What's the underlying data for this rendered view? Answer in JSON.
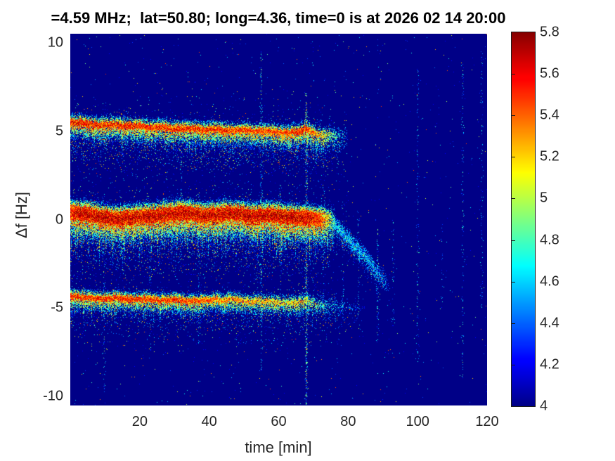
{
  "chart_data": {
    "type": "heatmap",
    "subtype": "doppler-spectrogram",
    "title": "=4.59 MHz;  lat=50.80; long=4.36, time=0 is at 2026 02 14 20:00",
    "xlabel": "time [min]",
    "ylabel": "Δf [Hz]",
    "xlim": [
      0,
      120
    ],
    "ylim": [
      -10.5,
      10.5
    ],
    "xticks": [
      20,
      40,
      60,
      80,
      100,
      120
    ],
    "yticks": [
      10,
      5,
      0,
      -5,
      -10
    ],
    "grid": false,
    "colorbar": {
      "colormap": "jet",
      "range": [
        4,
        5.8
      ],
      "tick_labels": [
        "4",
        "4.2",
        "4.4",
        "4.6",
        "4.8",
        "5",
        "5.2",
        "5.4",
        "5.6",
        "5.8"
      ],
      "tick_values": [
        4,
        4.2,
        4.4,
        4.6,
        4.8,
        5,
        5.2,
        5.4,
        5.6,
        5.8
      ],
      "position": "right"
    },
    "colors": {
      "background_floor": "#000087",
      "text": "#262626",
      "title_text": "#000000",
      "figure_background": "#ffffff"
    },
    "background_level": 4.0,
    "traces": [
      {
        "name": "upper-echo",
        "points": [
          [
            0,
            5.45
          ],
          [
            4,
            5.42
          ],
          [
            8,
            5.32
          ],
          [
            12,
            5.36
          ],
          [
            16,
            5.28
          ],
          [
            20,
            5.3
          ],
          [
            23,
            5.18
          ],
          [
            26,
            5.22
          ],
          [
            30,
            5.12
          ],
          [
            34,
            5.16
          ],
          [
            38,
            5.05
          ],
          [
            42,
            5.1
          ],
          [
            46,
            5.0
          ],
          [
            50,
            5.05
          ],
          [
            54,
            4.95
          ],
          [
            57,
            5.0
          ],
          [
            60,
            4.92
          ],
          [
            63,
            4.9
          ],
          [
            66,
            4.95
          ],
          [
            67.5,
            5.15
          ],
          [
            68.5,
            5.05
          ],
          [
            70,
            4.9
          ],
          [
            72,
            4.82
          ],
          [
            74,
            4.78
          ],
          [
            77,
            4.72
          ],
          [
            80,
            4.68
          ]
        ],
        "strength": [
          [
            0,
            1
          ],
          [
            45,
            0.95
          ],
          [
            60,
            0.9
          ],
          [
            67,
            1
          ],
          [
            70,
            0.85
          ],
          [
            73,
            0.7
          ],
          [
            76,
            0.45
          ],
          [
            79,
            0.18
          ],
          [
            81,
            0
          ]
        ],
        "peak_level": 5.82,
        "core_half_width_hz": 0.16,
        "halo_above_hz": 0.42,
        "halo_below_hz": 0.8,
        "icicle_hz": 0.9,
        "cloud_amp": 0.24,
        "cloud_sigma_hz": 1.1,
        "dens": 0.85
      },
      {
        "name": "center-echo",
        "points": [
          [
            0,
            0.38
          ],
          [
            5,
            0.28
          ],
          [
            9,
            0.12
          ],
          [
            13,
            0.02
          ],
          [
            17,
            0.08
          ],
          [
            21,
            0.18
          ],
          [
            25,
            0.22
          ],
          [
            29,
            0.32
          ],
          [
            33,
            0.38
          ],
          [
            36,
            0.3
          ],
          [
            39,
            0.18
          ],
          [
            42,
            0.28
          ],
          [
            45,
            0.35
          ],
          [
            48,
            0.3
          ],
          [
            51,
            0.22
          ],
          [
            54,
            0.18
          ],
          [
            57,
            0.28
          ],
          [
            60,
            0.22
          ],
          [
            63,
            0.12
          ],
          [
            66,
            0.1
          ],
          [
            69,
            0.05
          ],
          [
            72,
            0.0
          ],
          [
            74,
            -0.05
          ],
          [
            76,
            -0.12
          ]
        ],
        "strength": [
          [
            0,
            0.92
          ],
          [
            3,
            1
          ],
          [
            68,
            1
          ],
          [
            72,
            0.9
          ],
          [
            75,
            0.55
          ],
          [
            77,
            0.25
          ],
          [
            79,
            0
          ]
        ],
        "peak_level": 5.9,
        "core_half_width_hz": 0.38,
        "halo_above_hz": 0.55,
        "halo_below_hz": 1.15,
        "icicle_hz": 1.5,
        "cloud_amp": 0.32,
        "cloud_sigma_hz": 1.5,
        "dens": 0.95
      },
      {
        "name": "center-echo-descending-tail",
        "points": [
          [
            75.5,
            -0.15
          ],
          [
            78,
            -0.7
          ],
          [
            80.5,
            -1.15
          ],
          [
            83,
            -1.7
          ],
          [
            85.5,
            -2.2
          ],
          [
            88,
            -2.9
          ],
          [
            90,
            -3.3
          ],
          [
            92,
            -3.85
          ]
        ],
        "strength": [
          [
            75.5,
            0.75
          ],
          [
            86,
            0.65
          ],
          [
            90,
            0.45
          ],
          [
            92,
            0
          ]
        ],
        "peak_level": 5.05,
        "core_half_width_hz": 0.22,
        "halo_above_hz": 0.4,
        "halo_below_hz": 0.45,
        "icicle_hz": 0.5,
        "cloud_amp": 0.15,
        "cloud_sigma_hz": 0.6,
        "dens": 0.7
      },
      {
        "name": "lower-echo",
        "points": [
          [
            0,
            -4.32
          ],
          [
            5,
            -4.4
          ],
          [
            10,
            -4.48
          ],
          [
            14,
            -4.44
          ],
          [
            18,
            -4.52
          ],
          [
            22,
            -4.48
          ],
          [
            26,
            -4.58
          ],
          [
            30,
            -4.52
          ],
          [
            34,
            -4.62
          ],
          [
            38,
            -4.58
          ],
          [
            41,
            -4.52
          ],
          [
            44,
            -4.58
          ],
          [
            46,
            -4.48
          ],
          [
            49,
            -4.56
          ],
          [
            52,
            -4.62
          ],
          [
            55,
            -4.58
          ],
          [
            58,
            -4.66
          ],
          [
            61,
            -4.72
          ],
          [
            64,
            -4.7
          ],
          [
            66,
            -4.65
          ],
          [
            68,
            -4.6
          ],
          [
            70,
            -4.72
          ],
          [
            72,
            -4.78
          ],
          [
            75,
            -4.85
          ],
          [
            78,
            -4.9
          ],
          [
            82,
            -4.95
          ],
          [
            85,
            -5.0
          ]
        ],
        "strength": [
          [
            0,
            1
          ],
          [
            35,
            0.95
          ],
          [
            45,
            0.85
          ],
          [
            55,
            0.8
          ],
          [
            62,
            0.72
          ],
          [
            66,
            0.78
          ],
          [
            70,
            0.55
          ],
          [
            74,
            0.32
          ],
          [
            78,
            0.16
          ],
          [
            82,
            0.07
          ],
          [
            85,
            0
          ]
        ],
        "peak_level": 5.78,
        "core_half_width_hz": 0.14,
        "halo_above_hz": 0.38,
        "halo_below_hz": 0.65,
        "icicle_hz": 0.8,
        "cloud_amp": 0.2,
        "cloud_sigma_hz": 0.9,
        "dens": 0.85
      }
    ],
    "interference_streaks": [
      {
        "t": 9.8,
        "strength": 0.3,
        "f_min": -10.5,
        "f_max": 1.5
      },
      {
        "t": 23,
        "strength": 0.2,
        "f_min": -8,
        "f_max": 1
      },
      {
        "t": 32,
        "strength": 0.25,
        "f_min": -2.5,
        "f_max": 4
      },
      {
        "t": 37,
        "strength": 0.3,
        "f_min": -7,
        "f_max": 1.5
      },
      {
        "t": 44,
        "strength": 0.2,
        "f_min": -2,
        "f_max": 1.5
      },
      {
        "t": 55,
        "strength": 0.45,
        "f_min": -8.5,
        "f_max": 9.5
      },
      {
        "t": 60.5,
        "strength": 0.25,
        "f_min": -5,
        "f_max": 2
      },
      {
        "t": 68,
        "strength": 1.0,
        "f_min": -10.5,
        "f_max": 7.2
      },
      {
        "t": 73,
        "strength": 0.3,
        "f_min": -4.5,
        "f_max": 2
      },
      {
        "t": 78.5,
        "strength": 0.3,
        "f_min": -5,
        "f_max": 1
      },
      {
        "t": 83,
        "strength": 0.3,
        "f_min": -6,
        "f_max": 0.5
      },
      {
        "t": 88.5,
        "strength": 0.4,
        "f_min": -7,
        "f_max": -0.5
      },
      {
        "t": 93,
        "strength": 0.22,
        "f_min": -6,
        "f_max": 0
      },
      {
        "t": 100,
        "strength": 0.28,
        "f_min": -8.5,
        "f_max": 8.5
      },
      {
        "t": 107,
        "strength": 0.15,
        "f_min": -5,
        "f_max": 0
      },
      {
        "t": 113,
        "strength": 0.3,
        "f_min": -9,
        "f_max": 9
      },
      {
        "t": 118.5,
        "strength": 0.22,
        "f_min": -5,
        "f_max": 9.5
      }
    ]
  }
}
